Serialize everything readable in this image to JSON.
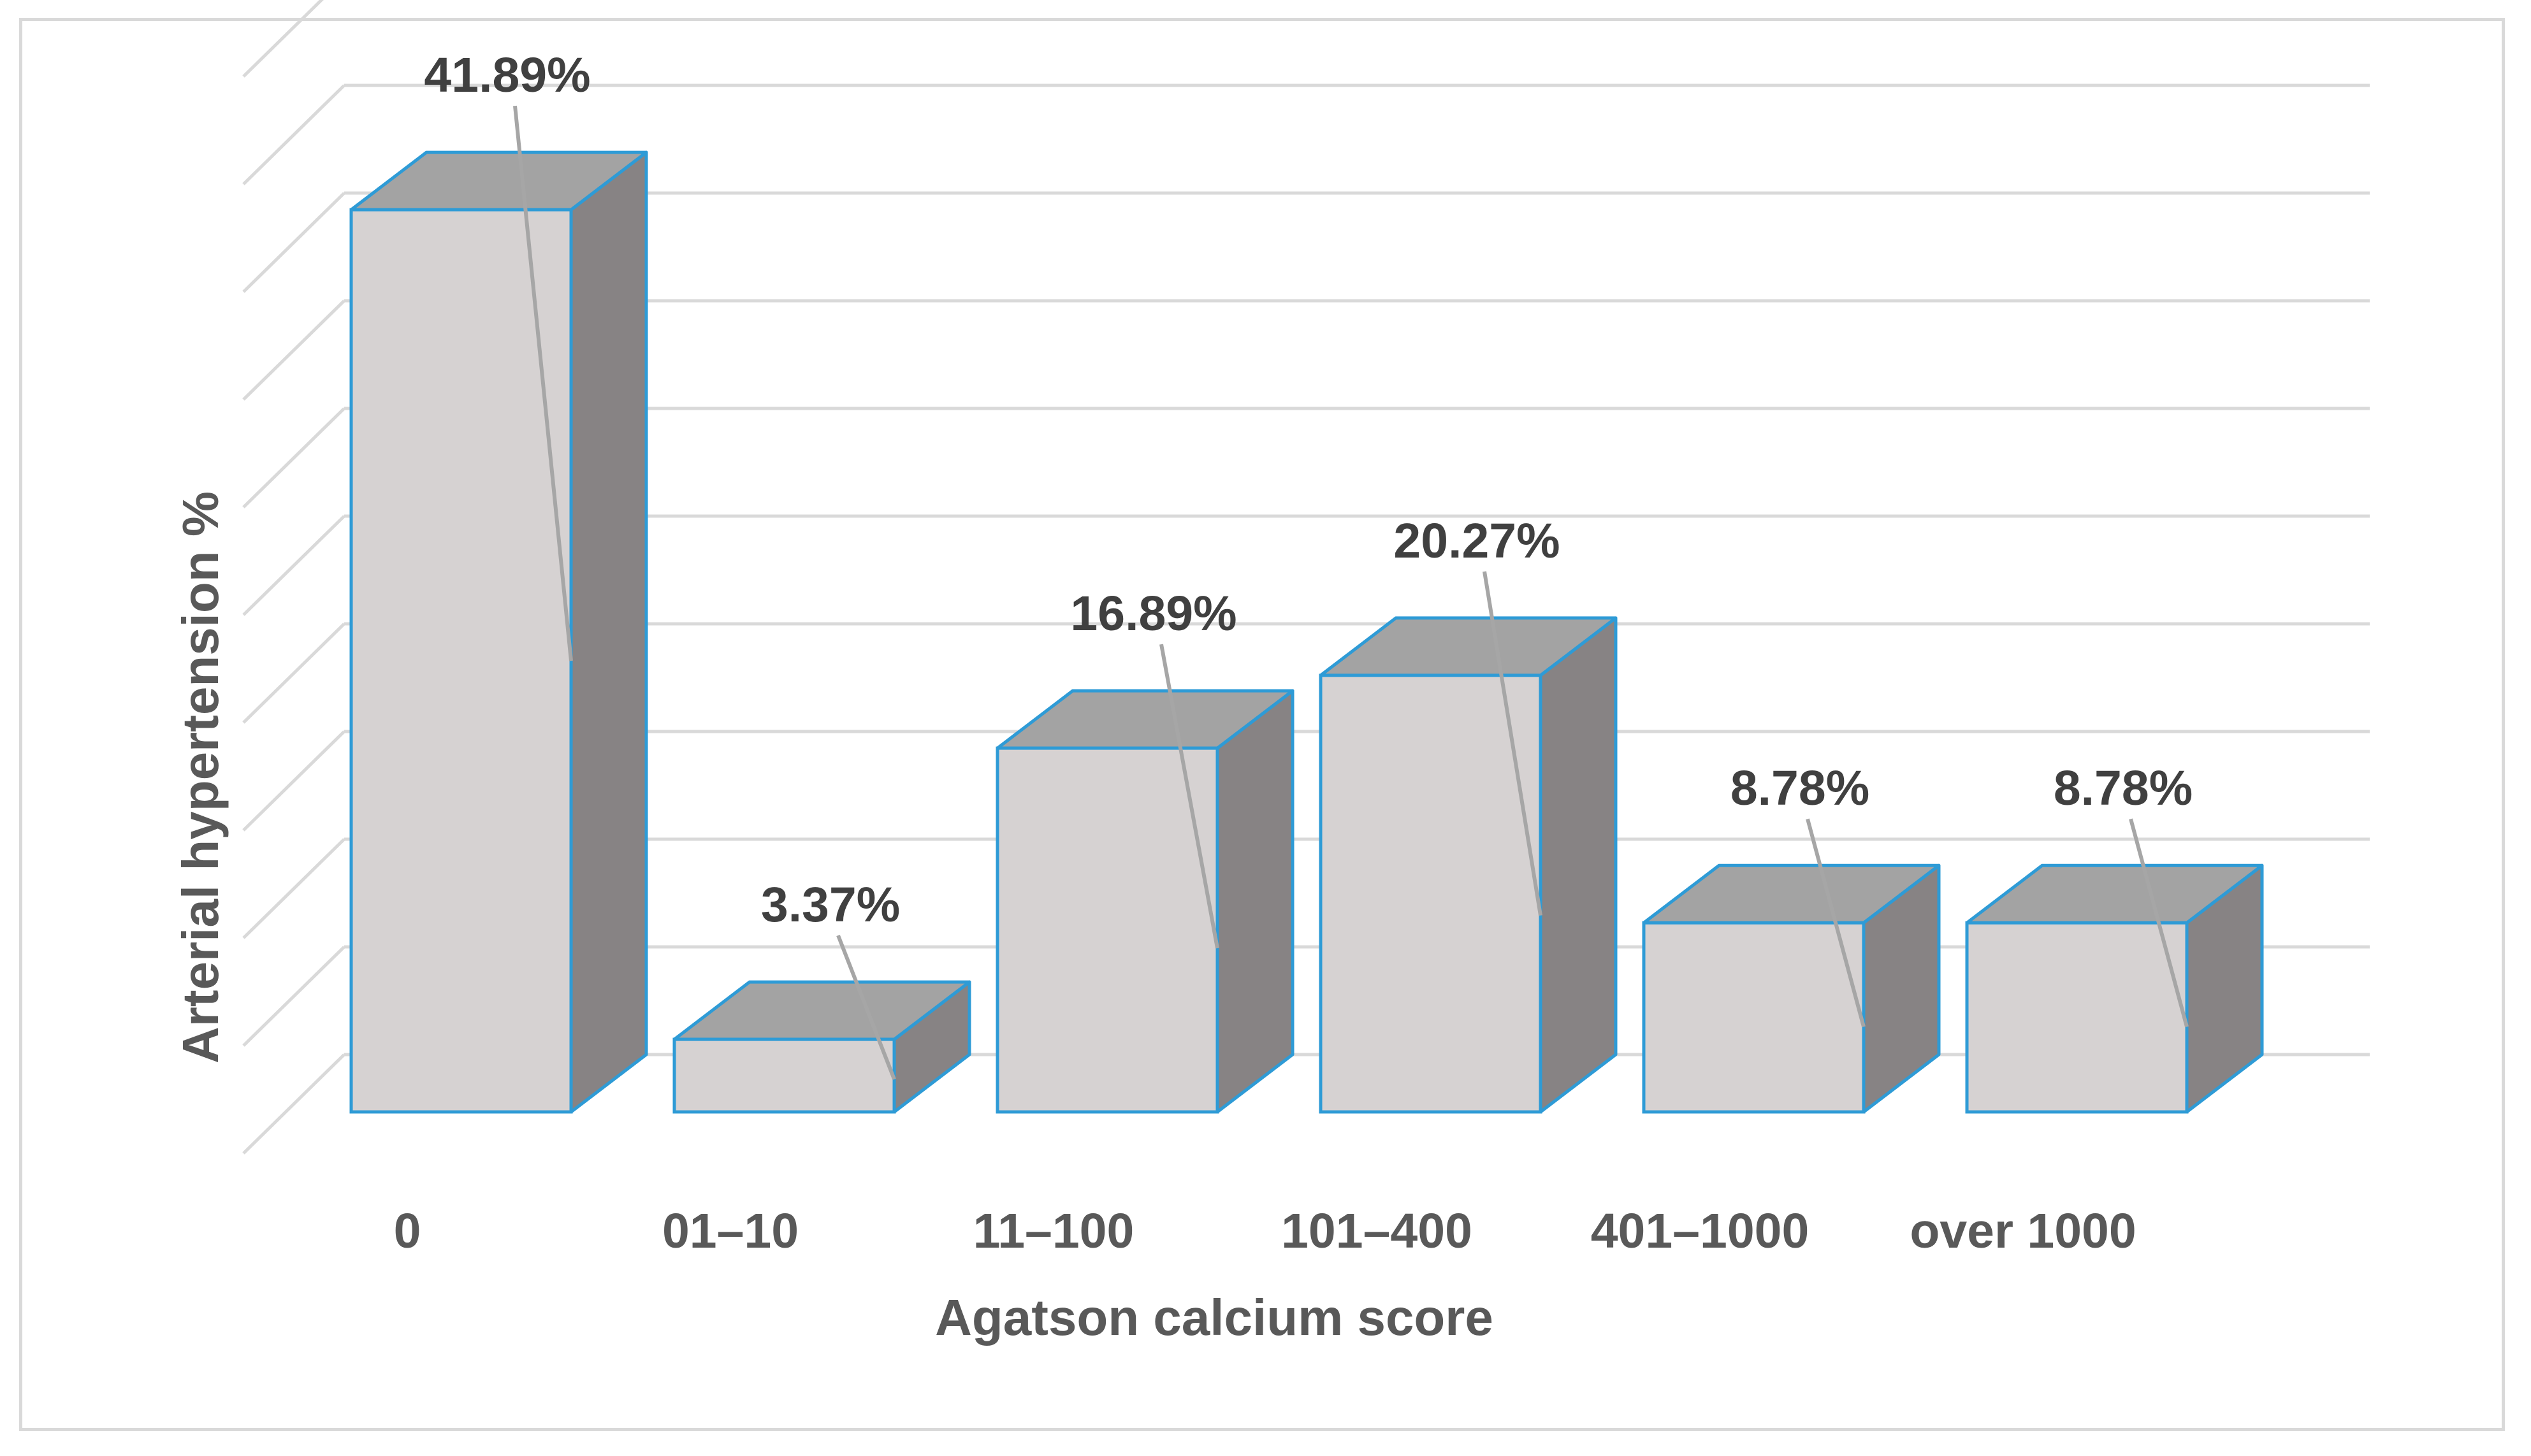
{
  "chart_data": {
    "type": "bar",
    "style": "3d-column",
    "categories": [
      "0",
      "01–10",
      "11–100",
      "101–400",
      "401–1000",
      "over 1000"
    ],
    "values": [
      41.89,
      3.37,
      16.89,
      20.27,
      8.78,
      8.78
    ],
    "data_labels": [
      "41.89%",
      "3.37%",
      "16.89%",
      "20.27%",
      "8.78%",
      "8.78%"
    ],
    "xlabel": "Agatson calcium score",
    "ylabel": "Arterial hypertension %",
    "ylim": [
      0,
      50
    ],
    "y_tick_labels_shown": false,
    "grid": true,
    "legend": "none",
    "colors": {
      "front": "#d6d2d2",
      "top": "#a3a3a3",
      "side": "#878384",
      "edge": "#2e9bd6",
      "grid": "#d9d9d9",
      "leader": "#a6a6a6"
    }
  }
}
